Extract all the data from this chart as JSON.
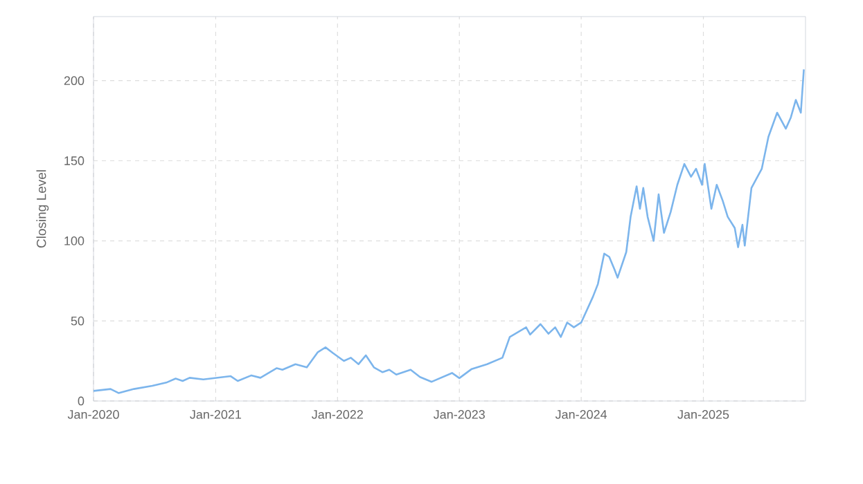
{
  "chart_data": {
    "type": "line",
    "ylabel": "Closing Level",
    "xlim": [
      "2020-01-01",
      "2025-11-03"
    ],
    "ylim": [
      0,
      240
    ],
    "xticks": [
      {
        "value": "2020-01-01",
        "label": "Jan-2020"
      },
      {
        "value": "2021-01-01",
        "label": "Jan-2021"
      },
      {
        "value": "2022-01-01",
        "label": "Jan-2022"
      },
      {
        "value": "2023-01-01",
        "label": "Jan-2023"
      },
      {
        "value": "2024-01-01",
        "label": "Jan-2024"
      },
      {
        "value": "2025-01-01",
        "label": "Jan-2025"
      }
    ],
    "yticks": [
      0,
      50,
      100,
      150,
      200
    ],
    "grid": true,
    "marker": "none",
    "line_style": "solid",
    "x": [
      "2020-01-01",
      "2020-02-21",
      "2020-03-16",
      "2020-05-01",
      "2020-06-25",
      "2020-08-06",
      "2020-09-03",
      "2020-09-24",
      "2020-10-15",
      "2020-11-25",
      "2021-02-15",
      "2021-03-08",
      "2021-04-18",
      "2021-05-15",
      "2021-07-03",
      "2021-07-20",
      "2021-08-28",
      "2021-10-01",
      "2021-11-03",
      "2021-11-26",
      "2021-12-18",
      "2022-01-20",
      "2022-02-10",
      "2022-03-05",
      "2022-03-27",
      "2022-04-20",
      "2022-05-16",
      "2022-06-05",
      "2022-06-26",
      "2022-08-08",
      "2022-09-05",
      "2022-10-10",
      "2022-12-10",
      "2023-01-01",
      "2023-02-07",
      "2023-03-25",
      "2023-05-10",
      "2023-06-01",
      "2023-07-20",
      "2023-08-01",
      "2023-09-01",
      "2023-09-25",
      "2023-10-15",
      "2023-11-01",
      "2023-11-20",
      "2023-12-10",
      "2024-01-01",
      "2024-02-05",
      "2024-02-20",
      "2024-03-10",
      "2024-03-25",
      "2024-04-10",
      "2024-04-19",
      "2024-05-15",
      "2024-05-28",
      "2024-06-15",
      "2024-06-25",
      "2024-07-05",
      "2024-07-18",
      "2024-08-05",
      "2024-08-20",
      "2024-09-05",
      "2024-09-25",
      "2024-10-15",
      "2024-11-05",
      "2024-11-25",
      "2024-12-10",
      "2024-12-28",
      "2025-01-05",
      "2025-01-25",
      "2025-02-10",
      "2025-02-28",
      "2025-03-15",
      "2025-04-05",
      "2025-04-15",
      "2025-04-28",
      "2025-05-05",
      "2025-05-25",
      "2025-06-25",
      "2025-07-15",
      "2025-08-10",
      "2025-09-05",
      "2025-09-20",
      "2025-10-05",
      "2025-10-20",
      "2025-10-29"
    ],
    "series": [
      {
        "color": "#7cb5ec",
        "values": [
          6.3,
          7.5,
          5,
          7.5,
          9.5,
          11.5,
          14,
          12.5,
          14.5,
          13.5,
          15.5,
          12.5,
          16,
          14.5,
          20.5,
          19.5,
          23,
          21,
          30.5,
          33.5,
          30,
          25,
          27,
          23,
          28.5,
          21,
          18,
          19.5,
          16.5,
          19.5,
          15,
          12,
          17.5,
          14.3,
          20,
          23,
          27,
          40,
          46,
          41.5,
          48,
          42,
          46,
          40,
          49,
          46,
          49,
          65,
          73,
          92,
          90,
          82,
          77,
          93,
          115,
          134,
          120,
          133,
          115,
          100,
          129,
          105,
          118,
          135,
          148,
          140,
          145,
          135,
          148,
          120,
          135,
          125,
          115,
          108,
          96,
          110,
          97,
          133,
          145,
          165,
          180,
          170,
          177,
          188,
          180,
          207
        ]
      }
    ]
  }
}
